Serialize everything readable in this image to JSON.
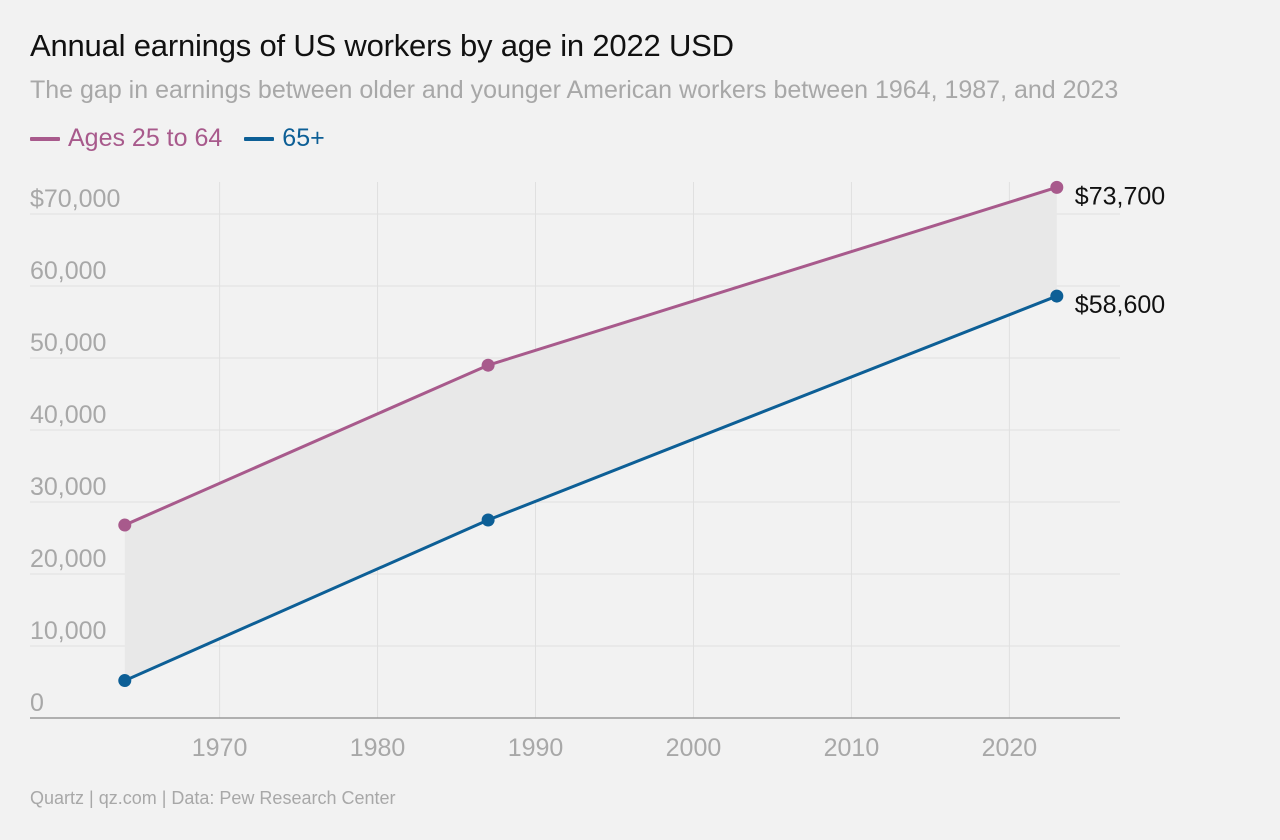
{
  "title": "Annual earnings of US workers by age in 2022 USD",
  "subtitle": "The gap in earnings between older and younger American workers between 1964, 1987, and 2023",
  "footer": "Quartz | qz.com | Data: Pew Research Center",
  "colors": {
    "series1": "#a85a8c",
    "series2": "#0d5f96",
    "band": "#e8e8e8",
    "grid": "#e0e0e0",
    "tick": "#a8a8a8",
    "axis": "#999999"
  },
  "chart_data": {
    "type": "line",
    "title": "Annual earnings of US workers by age in 2022 USD",
    "subtitle": "The gap in earnings between older and younger American workers between 1964, 1987, and 2023",
    "x": [
      1964,
      1987,
      2023
    ],
    "series": [
      {
        "name": "Ages 25 to 64",
        "values": [
          26800,
          49000,
          73700
        ],
        "color": "#a85a8c",
        "end_label": "$73,700"
      },
      {
        "name": "65+",
        "values": [
          5200,
          27500,
          58600
        ],
        "color": "#0d5f96",
        "end_label": "$58,600"
      }
    ],
    "shaded_band_between_series": true,
    "xlim": [
      1958,
      2027
    ],
    "ylim": [
      0,
      70000
    ],
    "x_ticks": [
      1970,
      1980,
      1990,
      2000,
      2010,
      2020
    ],
    "y_ticks": [
      0,
      10000,
      20000,
      30000,
      40000,
      50000,
      60000,
      70000
    ],
    "y_tick_labels": [
      "0",
      "10,000",
      "20,000",
      "30,000",
      "40,000",
      "50,000",
      "60,000",
      "$70,000"
    ],
    "grid": true,
    "legend_position": "top-left"
  }
}
